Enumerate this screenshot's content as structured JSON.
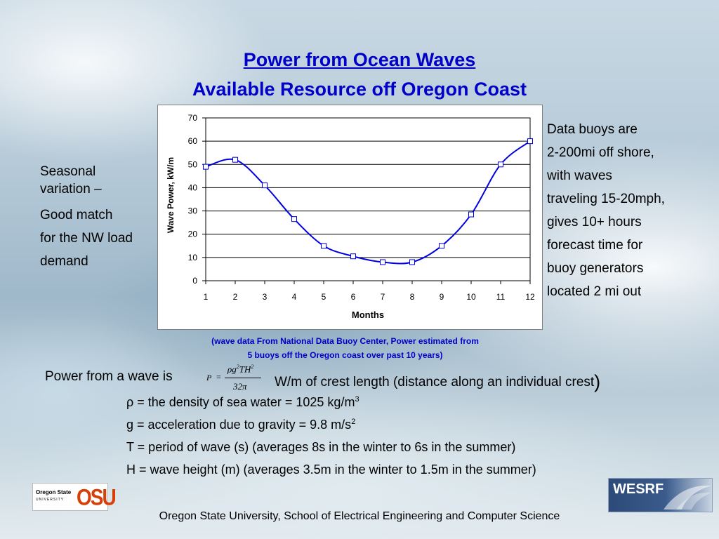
{
  "slide": {
    "title_line1": "Power from Ocean Waves",
    "title_line2": "Available Resource off Oregon Coast",
    "left_text": [
      "Seasonal",
      "variation –",
      "Good match",
      "for the NW load",
      "demand"
    ],
    "right_text": [
      "Data buoys are",
      "2-200mi off shore,",
      "with waves",
      "traveling 15-20mph,",
      "gives 10+ hours",
      "forecast time for",
      "buoy generators",
      "located 2 mi out"
    ],
    "source_note_line1": "(wave data From National Data Buoy Center, Power estimated from",
    "source_note_line2": "5 buoys off the Oregon coast over past 10 years)",
    "formula_lead": "Power from a wave is",
    "formula": {
      "lhs": "P",
      "eq": "=",
      "numerator_rho_g": "ρg",
      "numerator_exp1": "2",
      "numerator_TH": "TH",
      "numerator_exp2": "2",
      "denominator": "32π"
    },
    "formula_trail": "W/m of crest length (distance along an individual crest",
    "formula_paren": ")",
    "definitions": {
      "rho": {
        "symbol": "ρ",
        "text": " = the density of sea water = 1025 kg/m",
        "exp": "3"
      },
      "g": {
        "text": "g = acceleration due to gravity = 9.8 m/s",
        "exp": "2"
      },
      "T": {
        "text": "T = period of wave (s)  (averages 8s in the winter to 6s in the summer)"
      },
      "H": {
        "text": "H = wave height (m)  (averages 3.5m in the winter to 1.5m in the summer)"
      }
    },
    "footer": "Oregon State University, School of Electrical Engineering and Computer Science",
    "logos": {
      "osu_seal": "Oregon State",
      "osu_seal_sub": "UNIVERSITY",
      "osu_mark": "OSU",
      "wesrf": "WESRF"
    },
    "colors": {
      "title": "#0000c8",
      "series": "#0000e0",
      "marker": "#0000e0"
    }
  },
  "chart_data": {
    "type": "line",
    "title": "",
    "xlabel": "Months",
    "ylabel": "Wave Power, kW/m",
    "x": [
      1,
      2,
      3,
      4,
      5,
      6,
      7,
      8,
      9,
      10,
      11,
      12
    ],
    "series": [
      {
        "values": [
          49,
          52,
          41,
          26.5,
          15,
          10.5,
          8,
          8,
          15,
          28.5,
          50,
          60
        ]
      }
    ],
    "xlim": [
      1,
      12
    ],
    "ylim": [
      0,
      70
    ],
    "yticks": [
      0,
      10,
      20,
      30,
      40,
      50,
      60,
      70
    ],
    "xticks": [
      1,
      2,
      3,
      4,
      5,
      6,
      7,
      8,
      9,
      10,
      11,
      12
    ],
    "grid": "horizontal",
    "legend": "none"
  }
}
